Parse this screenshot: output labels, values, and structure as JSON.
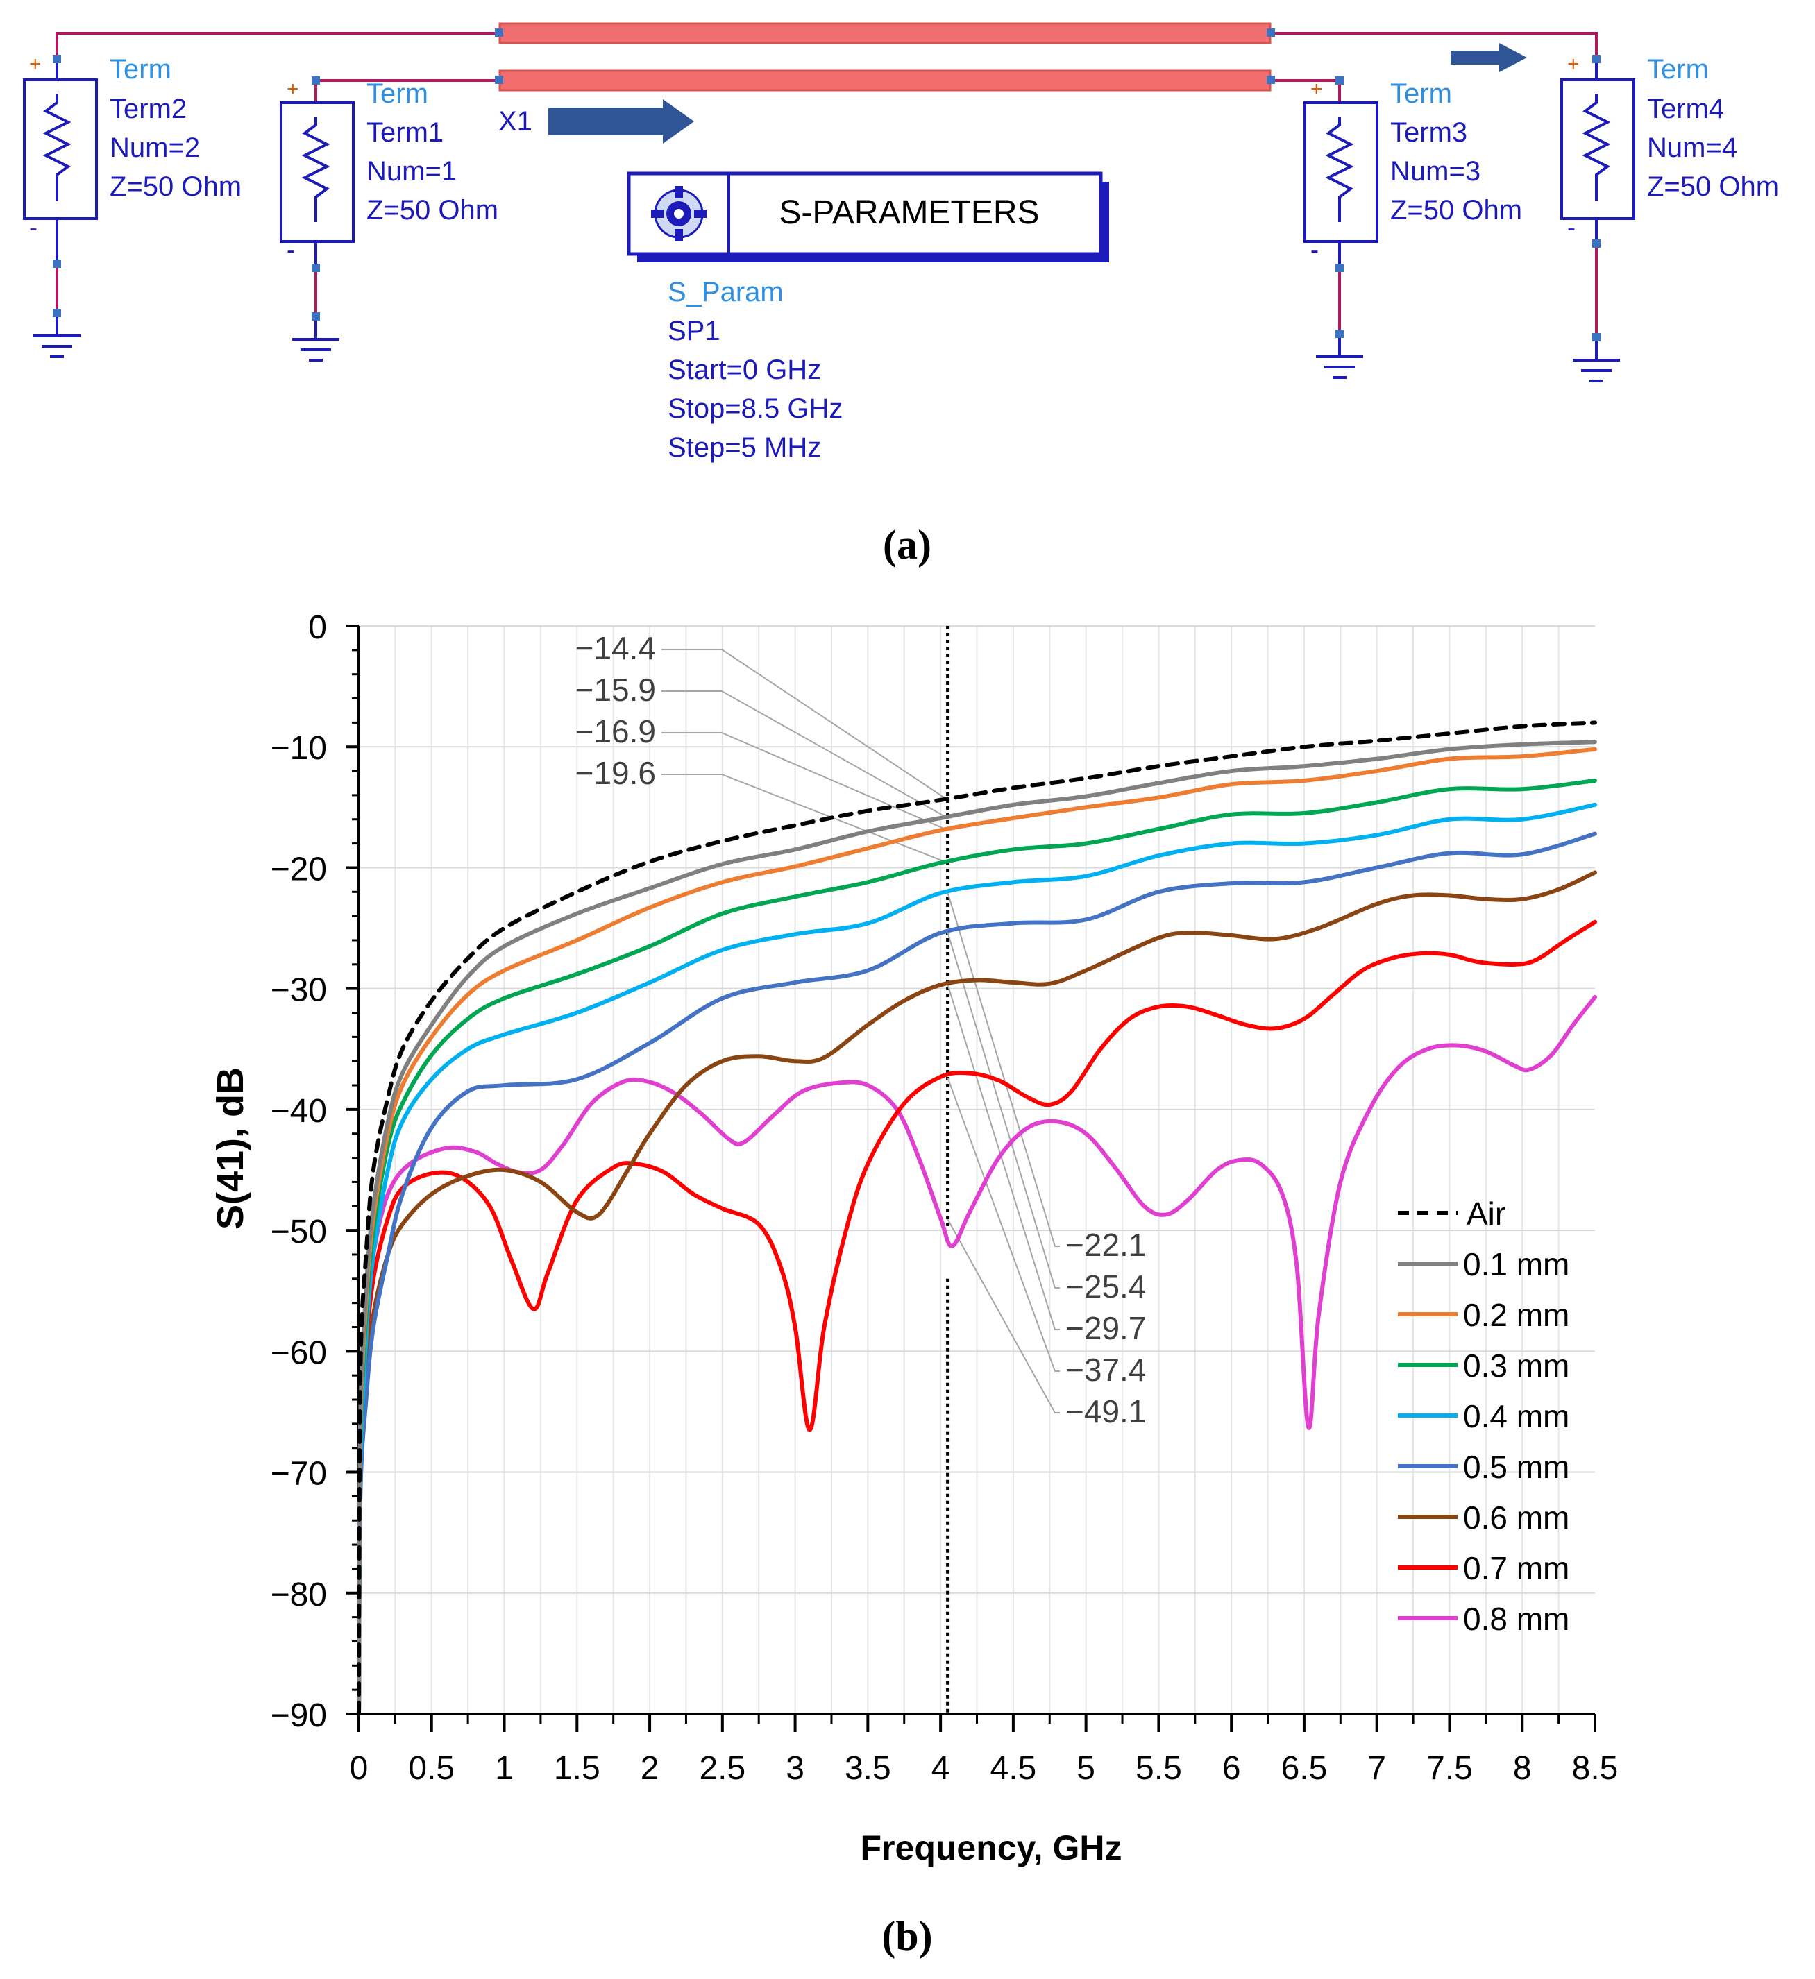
{
  "schematic": {
    "terms": [
      {
        "type": "Term",
        "name": "Term2",
        "num": "Num=2",
        "z": "Z=50 Ohm"
      },
      {
        "type": "Term",
        "name": "Term1",
        "num": "Num=1",
        "z": "Z=50 Ohm"
      },
      {
        "type": "Term",
        "name": "Term3",
        "num": "Num=3",
        "z": "Z=50 Ohm"
      },
      {
        "type": "Term",
        "name": "Term4",
        "num": "Num=4",
        "z": "Z=50 Ohm"
      }
    ],
    "plus": "+",
    "minus": "-",
    "x1_label": "X1",
    "sparam": {
      "title": "S-PARAMETERS",
      "type": "S_Param",
      "name": "SP1",
      "start": "Start=0 GHz",
      "stop": "Stop=8.5 GHz",
      "step": "Step=5 MHz"
    },
    "colors": {
      "term_type": "#2f8fe0",
      "term_text": "#1c1ab8",
      "wire": "#b0195d",
      "line_fill": "#f26d6d",
      "line_stroke": "#d9534f",
      "node": "#3b73c4",
      "arrow": "#2f5597"
    }
  },
  "captions": {
    "a": "(a)",
    "b": "(b)"
  },
  "chart_data": {
    "type": "line",
    "xlabel": "Frequency, GHz",
    "ylabel": "S(41), dB",
    "xlim": [
      0,
      8.5
    ],
    "ylim": [
      -90,
      0
    ],
    "x_ticks": [
      "0",
      "0.5",
      "1",
      "1.5",
      "2",
      "2.5",
      "3",
      "3.5",
      "4",
      "4.5",
      "5",
      "5.5",
      "6",
      "6.5",
      "7",
      "7.5",
      "8",
      "8.5"
    ],
    "y_ticks": [
      "0",
      "−10",
      "−20",
      "−30",
      "−40",
      "−50",
      "−60",
      "−70",
      "−80",
      "−90"
    ],
    "marker_x": 4.05,
    "series": [
      {
        "name": "Air",
        "color": "#000000",
        "dash": true,
        "points": [
          [
            0.01,
            -62
          ],
          [
            0.05,
            -52
          ],
          [
            0.1,
            -45
          ],
          [
            0.2,
            -39
          ],
          [
            0.3,
            -35
          ],
          [
            0.5,
            -31
          ],
          [
            0.75,
            -27.5
          ],
          [
            1,
            -25
          ],
          [
            1.5,
            -22
          ],
          [
            2,
            -19.5
          ],
          [
            2.5,
            -17.8
          ],
          [
            3,
            -16.5
          ],
          [
            3.5,
            -15.3
          ],
          [
            4,
            -14.4
          ],
          [
            4.5,
            -13.4
          ],
          [
            5,
            -12.6
          ],
          [
            5.5,
            -11.6
          ],
          [
            6,
            -10.8
          ],
          [
            6.5,
            -10
          ],
          [
            7,
            -9.5
          ],
          [
            7.5,
            -8.9
          ],
          [
            8,
            -8.3
          ],
          [
            8.5,
            -8
          ]
        ]
      },
      {
        "name": "0.1 mm",
        "color": "#808080",
        "dash": false,
        "points": [
          [
            0.01,
            -66
          ],
          [
            0.05,
            -55
          ],
          [
            0.1,
            -48
          ],
          [
            0.2,
            -41
          ],
          [
            0.3,
            -37
          ],
          [
            0.5,
            -33
          ],
          [
            0.75,
            -29
          ],
          [
            1,
            -26.5
          ],
          [
            1.5,
            -23.8
          ],
          [
            2,
            -21.7
          ],
          [
            2.5,
            -19.7
          ],
          [
            3,
            -18.5
          ],
          [
            3.5,
            -17
          ],
          [
            4,
            -15.9
          ],
          [
            4.5,
            -14.8
          ],
          [
            5,
            -14.1
          ],
          [
            5.5,
            -13
          ],
          [
            6,
            -12
          ],
          [
            6.5,
            -11.6
          ],
          [
            7,
            -11
          ],
          [
            7.5,
            -10.2
          ],
          [
            8,
            -9.8
          ],
          [
            8.5,
            -9.6
          ]
        ]
      },
      {
        "name": "0.2 mm",
        "color": "#ed7d31",
        "dash": false,
        "points": [
          [
            0.01,
            -67
          ],
          [
            0.05,
            -56
          ],
          [
            0.1,
            -49
          ],
          [
            0.2,
            -42
          ],
          [
            0.3,
            -38
          ],
          [
            0.5,
            -34
          ],
          [
            0.75,
            -30.5
          ],
          [
            1,
            -28.5
          ],
          [
            1.5,
            -26
          ],
          [
            2,
            -23.3
          ],
          [
            2.5,
            -21.2
          ],
          [
            3,
            -19.9
          ],
          [
            3.5,
            -18.4
          ],
          [
            4,
            -16.9
          ],
          [
            4.5,
            -15.9
          ],
          [
            5,
            -15
          ],
          [
            5.5,
            -14.2
          ],
          [
            6,
            -13.1
          ],
          [
            6.5,
            -12.8
          ],
          [
            7,
            -12
          ],
          [
            7.5,
            -11
          ],
          [
            8,
            -10.8
          ],
          [
            8.5,
            -10.2
          ]
        ]
      },
      {
        "name": "0.3 mm",
        "color": "#00a651",
        "dash": false,
        "points": [
          [
            0.01,
            -68
          ],
          [
            0.05,
            -57
          ],
          [
            0.1,
            -50
          ],
          [
            0.2,
            -43
          ],
          [
            0.3,
            -39.5
          ],
          [
            0.5,
            -35.5
          ],
          [
            0.75,
            -32.5
          ],
          [
            1,
            -30.8
          ],
          [
            1.5,
            -28.8
          ],
          [
            2,
            -26.5
          ],
          [
            2.5,
            -23.8
          ],
          [
            3,
            -22.4
          ],
          [
            3.5,
            -21.2
          ],
          [
            4,
            -19.6
          ],
          [
            4.5,
            -18.5
          ],
          [
            5,
            -18
          ],
          [
            5.5,
            -16.8
          ],
          [
            6,
            -15.6
          ],
          [
            6.5,
            -15.5
          ],
          [
            7,
            -14.6
          ],
          [
            7.5,
            -13.5
          ],
          [
            8,
            -13.5
          ],
          [
            8.5,
            -12.8
          ]
        ]
      },
      {
        "name": "0.4 mm",
        "color": "#00b0f0",
        "dash": false,
        "points": [
          [
            0.01,
            -70
          ],
          [
            0.05,
            -59
          ],
          [
            0.1,
            -52
          ],
          [
            0.2,
            -45
          ],
          [
            0.3,
            -41
          ],
          [
            0.5,
            -37.5
          ],
          [
            0.75,
            -35
          ],
          [
            1,
            -33.8
          ],
          [
            1.5,
            -32
          ],
          [
            2,
            -29.5
          ],
          [
            2.5,
            -26.8
          ],
          [
            3,
            -25.5
          ],
          [
            3.5,
            -24.6
          ],
          [
            4,
            -22.1
          ],
          [
            4.5,
            -21.2
          ],
          [
            5,
            -20.7
          ],
          [
            5.5,
            -19
          ],
          [
            6,
            -18
          ],
          [
            6.5,
            -18
          ],
          [
            7,
            -17.3
          ],
          [
            7.5,
            -16
          ],
          [
            8,
            -16
          ],
          [
            8.5,
            -14.8
          ]
        ]
      },
      {
        "name": "0.5 mm",
        "color": "#4472c4",
        "dash": false,
        "points": [
          [
            0.01,
            -72
          ],
          [
            0.05,
            -64
          ],
          [
            0.1,
            -58
          ],
          [
            0.2,
            -52
          ],
          [
            0.3,
            -47
          ],
          [
            0.5,
            -41.5
          ],
          [
            0.75,
            -38.5
          ],
          [
            1,
            -38
          ],
          [
            1.5,
            -37.5
          ],
          [
            2,
            -34.5
          ],
          [
            2.5,
            -30.8
          ],
          [
            3,
            -29.5
          ],
          [
            3.5,
            -28.5
          ],
          [
            4,
            -25.4
          ],
          [
            4.5,
            -24.6
          ],
          [
            5,
            -24.3
          ],
          [
            5.5,
            -22
          ],
          [
            6,
            -21.3
          ],
          [
            6.5,
            -21.2
          ],
          [
            7,
            -20
          ],
          [
            7.5,
            -18.8
          ],
          [
            8,
            -18.9
          ],
          [
            8.5,
            -17.2
          ]
        ]
      },
      {
        "name": "0.6 mm",
        "color": "#8b4513",
        "dash": false,
        "points": [
          [
            0.01,
            -72
          ],
          [
            0.05,
            -63
          ],
          [
            0.1,
            -57
          ],
          [
            0.2,
            -52
          ],
          [
            0.3,
            -49.5
          ],
          [
            0.5,
            -47
          ],
          [
            0.75,
            -45.5
          ],
          [
            1,
            -45
          ],
          [
            1.25,
            -46
          ],
          [
            1.5,
            -48.5
          ],
          [
            1.65,
            -48.7
          ],
          [
            1.85,
            -45
          ],
          [
            2,
            -42
          ],
          [
            2.25,
            -38
          ],
          [
            2.5,
            -36
          ],
          [
            2.75,
            -35.6
          ],
          [
            3,
            -36
          ],
          [
            3.2,
            -35.7
          ],
          [
            3.5,
            -33
          ],
          [
            3.75,
            -31
          ],
          [
            4,
            -29.7
          ],
          [
            4.25,
            -29.3
          ],
          [
            4.5,
            -29.5
          ],
          [
            4.75,
            -29.6
          ],
          [
            5,
            -28.5
          ],
          [
            5.5,
            -25.8
          ],
          [
            5.75,
            -25.4
          ],
          [
            6,
            -25.6
          ],
          [
            6.3,
            -25.9
          ],
          [
            6.6,
            -25
          ],
          [
            7,
            -23
          ],
          [
            7.25,
            -22.3
          ],
          [
            7.5,
            -22.3
          ],
          [
            7.75,
            -22.6
          ],
          [
            8,
            -22.6
          ],
          [
            8.25,
            -21.8
          ],
          [
            8.5,
            -20.4
          ]
        ]
      },
      {
        "name": "0.7 mm",
        "color": "#ff0000",
        "dash": false,
        "points": [
          [
            0.01,
            -70
          ],
          [
            0.05,
            -60
          ],
          [
            0.1,
            -54
          ],
          [
            0.2,
            -49
          ],
          [
            0.3,
            -46.5
          ],
          [
            0.5,
            -45.3
          ],
          [
            0.7,
            -45.6
          ],
          [
            0.9,
            -48
          ],
          [
            1.05,
            -52.5
          ],
          [
            1.2,
            -56.5
          ],
          [
            1.3,
            -53.5
          ],
          [
            1.5,
            -47.5
          ],
          [
            1.75,
            -44.8
          ],
          [
            1.9,
            -44.5
          ],
          [
            2.1,
            -45.2
          ],
          [
            2.3,
            -47
          ],
          [
            2.5,
            -48.2
          ],
          [
            2.75,
            -49.5
          ],
          [
            2.9,
            -53
          ],
          [
            3,
            -58
          ],
          [
            3.1,
            -66.5
          ],
          [
            3.2,
            -58
          ],
          [
            3.35,
            -50
          ],
          [
            3.5,
            -44.5
          ],
          [
            3.75,
            -39.5
          ],
          [
            4,
            -37.3
          ],
          [
            4.2,
            -37
          ],
          [
            4.4,
            -37.6
          ],
          [
            4.6,
            -39
          ],
          [
            4.75,
            -39.6
          ],
          [
            4.9,
            -38.5
          ],
          [
            5.1,
            -35
          ],
          [
            5.3,
            -32.5
          ],
          [
            5.5,
            -31.5
          ],
          [
            5.7,
            -31.5
          ],
          [
            5.9,
            -32.2
          ],
          [
            6.1,
            -33
          ],
          [
            6.3,
            -33.3
          ],
          [
            6.5,
            -32.5
          ],
          [
            6.7,
            -30.5
          ],
          [
            6.9,
            -28.5
          ],
          [
            7.1,
            -27.5
          ],
          [
            7.3,
            -27.1
          ],
          [
            7.5,
            -27.2
          ],
          [
            7.7,
            -27.8
          ],
          [
            7.95,
            -28
          ],
          [
            8.1,
            -27.6
          ],
          [
            8.3,
            -26
          ],
          [
            8.5,
            -24.5
          ]
        ]
      },
      {
        "name": "0.8 mm",
        "color": "#e040d0",
        "dash": false,
        "points": [
          [
            0.01,
            -66
          ],
          [
            0.05,
            -58
          ],
          [
            0.1,
            -52
          ],
          [
            0.2,
            -47
          ],
          [
            0.35,
            -44.5
          ],
          [
            0.6,
            -43.2
          ],
          [
            0.8,
            -43.5
          ],
          [
            0.95,
            -44.5
          ],
          [
            1.1,
            -45.2
          ],
          [
            1.25,
            -45
          ],
          [
            1.4,
            -43
          ],
          [
            1.6,
            -39.5
          ],
          [
            1.8,
            -37.8
          ],
          [
            1.95,
            -37.6
          ],
          [
            2.15,
            -38.5
          ],
          [
            2.35,
            -40.3
          ],
          [
            2.55,
            -42.5
          ],
          [
            2.65,
            -42.7
          ],
          [
            2.85,
            -40.5
          ],
          [
            3.05,
            -38.5
          ],
          [
            3.3,
            -37.8
          ],
          [
            3.5,
            -38
          ],
          [
            3.7,
            -40
          ],
          [
            3.85,
            -44
          ],
          [
            4,
            -49
          ],
          [
            4.08,
            -51.3
          ],
          [
            4.2,
            -48.5
          ],
          [
            4.4,
            -44
          ],
          [
            4.6,
            -41.5
          ],
          [
            4.8,
            -41
          ],
          [
            5,
            -42
          ],
          [
            5.2,
            -44.8
          ],
          [
            5.4,
            -48
          ],
          [
            5.55,
            -48.7
          ],
          [
            5.7,
            -47.5
          ],
          [
            5.9,
            -45
          ],
          [
            6.05,
            -44.2
          ],
          [
            6.2,
            -44.5
          ],
          [
            6.35,
            -47
          ],
          [
            6.45,
            -53
          ],
          [
            6.53,
            -66.3
          ],
          [
            6.6,
            -57
          ],
          [
            6.75,
            -46
          ],
          [
            6.95,
            -40
          ],
          [
            7.15,
            -36.5
          ],
          [
            7.35,
            -35
          ],
          [
            7.55,
            -34.7
          ],
          [
            7.75,
            -35.2
          ],
          [
            7.95,
            -36.4
          ],
          [
            8.05,
            -36.7
          ],
          [
            8.2,
            -35.5
          ],
          [
            8.35,
            -33
          ],
          [
            8.5,
            -30.7
          ]
        ]
      }
    ],
    "callouts_left": [
      {
        "label": "−14.4",
        "value": -14.4
      },
      {
        "label": "−15.9",
        "value": -15.9
      },
      {
        "label": "−16.9",
        "value": -16.9
      },
      {
        "label": "−19.6",
        "value": -19.6
      }
    ],
    "callouts_right": [
      {
        "label": "−22.1",
        "value": -22.1
      },
      {
        "label": "−25.4",
        "value": -25.4
      },
      {
        "label": "−29.7",
        "value": -29.7
      },
      {
        "label": "−37.4",
        "value": -37.4
      },
      {
        "label": "−49.1",
        "value": -49.1
      }
    ]
  }
}
